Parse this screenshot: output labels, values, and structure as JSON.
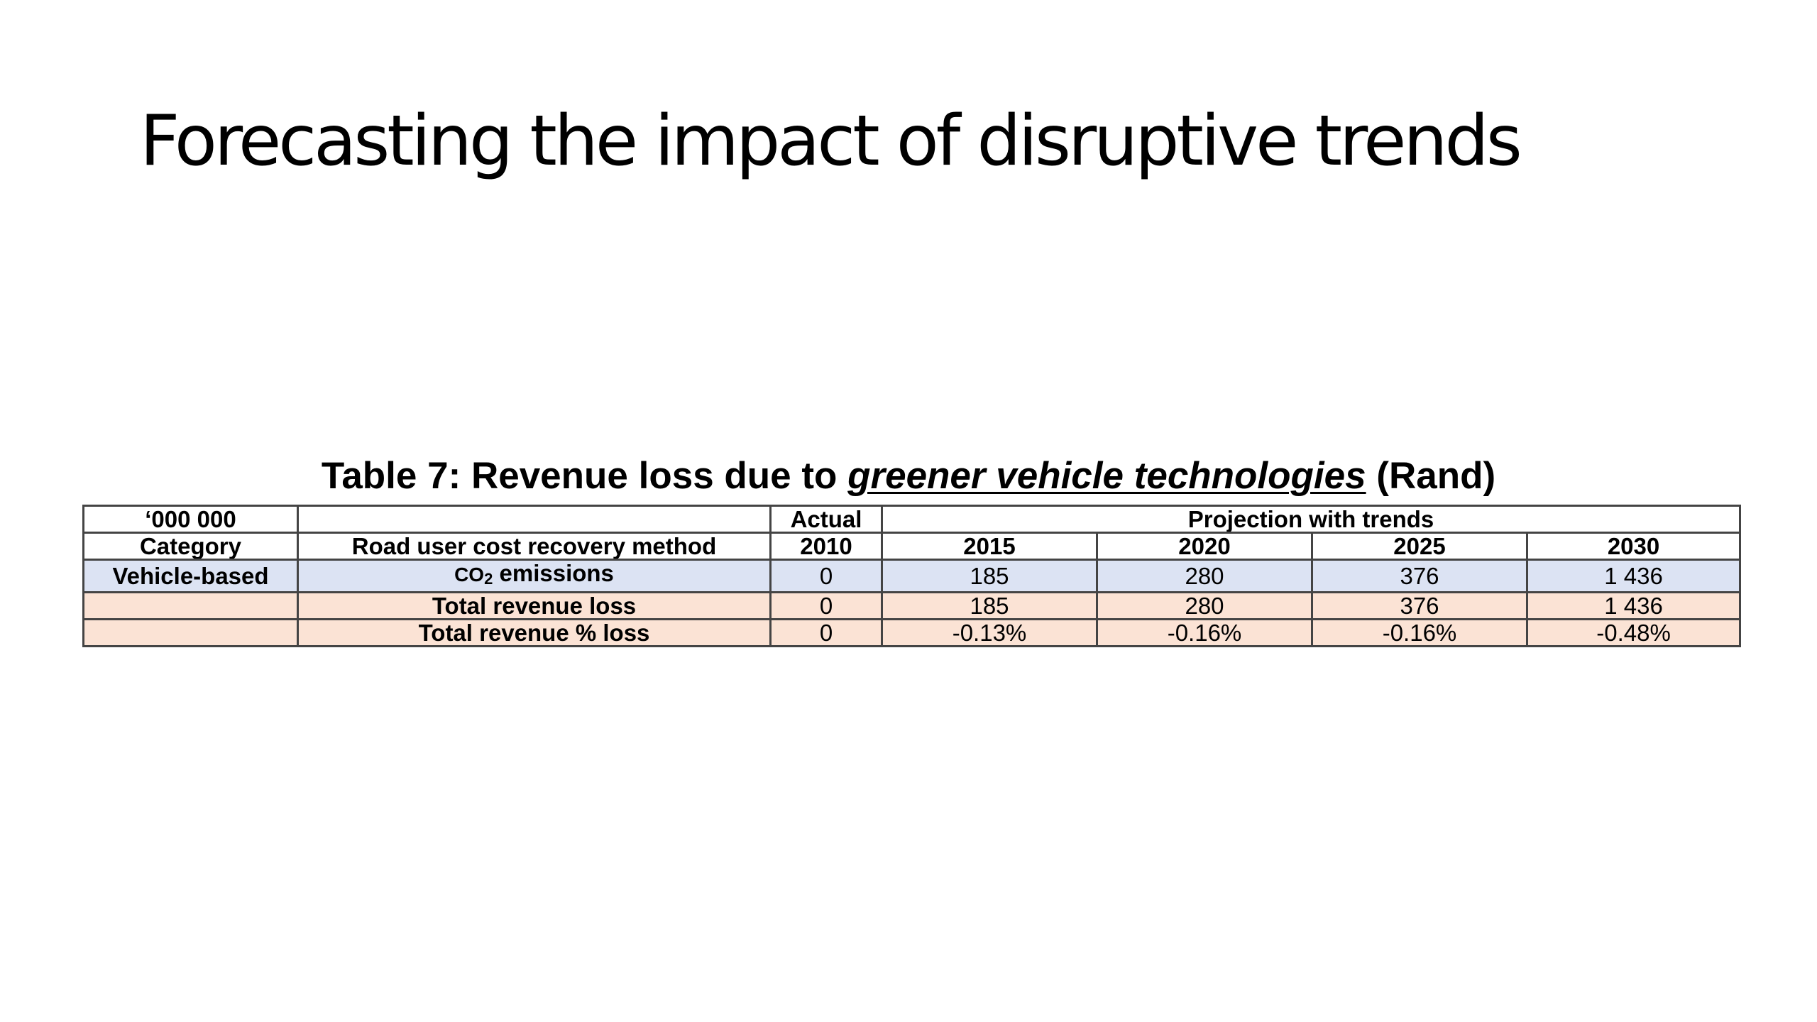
{
  "slide": {
    "title": "Forecasting the impact of disruptive trends"
  },
  "caption": {
    "prefix": "Table 7: Revenue loss due to ",
    "emphasis": "greener vehicle technologies",
    "suffix": " (Rand)"
  },
  "table": {
    "header_row1": {
      "unit": "‘000 000",
      "method": "",
      "actual": "Actual",
      "projection": "Projection with trends"
    },
    "header_row2": {
      "category": "Category",
      "method": "Road user cost recovery method",
      "y2010": "2010",
      "y2015": "2015",
      "y2020": "2020",
      "y2025": "2025",
      "y2030": "2030"
    },
    "rows": [
      {
        "category": "Vehicle-based",
        "method_prefix": "CO",
        "method_sub": "2",
        "method_suffix": " emissions",
        "y2010": "0",
        "y2015": "185",
        "y2020": "280",
        "y2025": "376",
        "y2030": "1 436"
      },
      {
        "category": "",
        "method": "Total revenue loss",
        "y2010": "0",
        "y2015": "185",
        "y2020": "280",
        "y2025": "376",
        "y2030": "1 436"
      },
      {
        "category": "",
        "method": "Total revenue % loss",
        "y2010": "0",
        "y2015": "-0.13%",
        "y2020": "-0.16%",
        "y2025": "-0.16%",
        "y2030": "-0.48%"
      }
    ],
    "colors": {
      "vehicle_row_bg": "#dce3f3",
      "total_rows_bg": "#fbe3d5",
      "border": "#444444"
    }
  }
}
